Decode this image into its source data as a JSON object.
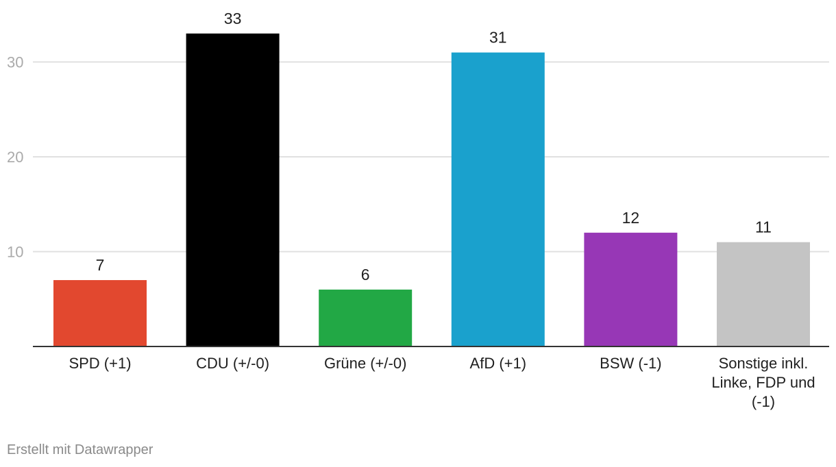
{
  "chart_data": {
    "type": "bar",
    "categories": [
      "SPD (+1)",
      "CDU (+/-0)",
      "Grüne (+/-0)",
      "AfD (+1)",
      "BSW (-1)",
      "Sonstige inkl. Linke, FDP und (-1)"
    ],
    "category_lines": [
      [
        "SPD (+1)"
      ],
      [
        "CDU (+/-0)"
      ],
      [
        "Grüne (+/-0)"
      ],
      [
        "AfD (+1)"
      ],
      [
        "BSW (-1)"
      ],
      [
        "Sonstige inkl.",
        "Linke, FDP und",
        "(-1)"
      ]
    ],
    "values": [
      7,
      33,
      6,
      31,
      12,
      11
    ],
    "data_labels": [
      "7",
      "33",
      "6",
      "31",
      "12",
      "11"
    ],
    "colors": [
      "#e2482f",
      "#000000",
      "#22a845",
      "#1aa1cd",
      "#9737b6",
      "#c4c4c4"
    ],
    "yticks": [
      10,
      20,
      30
    ],
    "ytick_labels": [
      "10",
      "20",
      "30"
    ],
    "ylim": [
      0,
      33
    ],
    "grid": true,
    "title": "",
    "xlabel": "",
    "ylabel": ""
  },
  "footer": {
    "credit": "Erstellt mit Datawrapper"
  }
}
